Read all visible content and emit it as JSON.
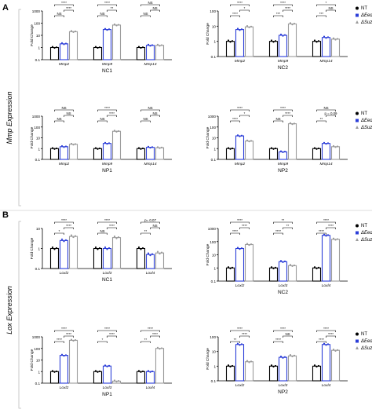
{
  "chart_data": [
    {
      "type": "bar",
      "log": true,
      "section": "A",
      "group_label": "Mmp Expression",
      "title": "NC1",
      "ylabel": "Fold Change",
      "ylim": [
        0.1,
        1000
      ],
      "yticks": [
        0.1,
        1,
        10,
        100,
        1000
      ],
      "yticklabels": [
        "0.1",
        "1",
        "10",
        "100",
        "1000"
      ],
      "categories": [
        "Mmp2",
        "Mmp9",
        "Mmp14"
      ],
      "series": [
        {
          "name": "NT",
          "values": [
            1,
            1,
            1
          ]
        },
        {
          "name": "ΔEed",
          "values": [
            2,
            30,
            1.5
          ]
        },
        {
          "name": "ΔSuz12",
          "values": [
            20,
            70,
            1.5
          ]
        }
      ],
      "comparisons": [
        {
          "category": 0,
          "pair": [
            0,
            1
          ],
          "label": "NS"
        },
        {
          "category": 0,
          "pair": [
            1,
            2
          ],
          "label": "****"
        },
        {
          "category": 0,
          "pair": [
            0,
            2
          ],
          "label": "****"
        },
        {
          "category": 1,
          "pair": [
            0,
            1
          ],
          "label": "NS"
        },
        {
          "category": 1,
          "pair": [
            1,
            2
          ],
          "label": "**"
        },
        {
          "category": 1,
          "pair": [
            0,
            2
          ],
          "label": "****"
        },
        {
          "category": 2,
          "pair": [
            0,
            1
          ],
          "label": "NS"
        },
        {
          "category": 2,
          "pair": [
            1,
            2
          ],
          "label": "NS"
        },
        {
          "category": 2,
          "pair": [
            0,
            2
          ],
          "label": "NS"
        }
      ]
    },
    {
      "type": "bar",
      "log": true,
      "section": "A",
      "title": "NC2",
      "ylabel": "Fold Change",
      "ylim": [
        0.1,
        100
      ],
      "yticks": [
        0.1,
        1,
        10,
        100
      ],
      "yticklabels": [
        "0.1",
        "1",
        "10",
        "100"
      ],
      "categories": [
        "Mmp2",
        "Mmp9",
        "Mmp14"
      ],
      "series": [
        {
          "name": "NT",
          "values": [
            1,
            1,
            1
          ]
        },
        {
          "name": "ΔEed",
          "values": [
            6,
            2.5,
            1.8
          ]
        },
        {
          "name": "ΔSuz12",
          "values": [
            9,
            14,
            1.4
          ]
        }
      ],
      "comparisons": [
        {
          "category": 0,
          "pair": [
            0,
            1
          ],
          "label": "****"
        },
        {
          "category": 0,
          "pair": [
            1,
            2
          ],
          "label": "*"
        },
        {
          "category": 0,
          "pair": [
            0,
            2
          ],
          "label": "****"
        },
        {
          "category": 1,
          "pair": [
            0,
            1
          ],
          "label": "***"
        },
        {
          "category": 1,
          "pair": [
            1,
            2
          ],
          "label": "****"
        },
        {
          "category": 1,
          "pair": [
            0,
            2
          ],
          "label": "****"
        },
        {
          "category": 2,
          "pair": [
            0,
            1
          ],
          "label": "***"
        },
        {
          "category": 2,
          "pair": [
            1,
            2
          ],
          "label": "NS"
        },
        {
          "category": 2,
          "pair": [
            0,
            2
          ],
          "label": "*"
        }
      ]
    },
    {
      "type": "bar",
      "log": true,
      "section": "A",
      "title": "NP1",
      "ylabel": "Fold Change",
      "ylim": [
        0.1,
        1000
      ],
      "yticks": [
        0.1,
        1,
        10,
        100,
        1000
      ],
      "yticklabels": [
        "0.1",
        "1",
        "10",
        "100",
        "1000"
      ],
      "categories": [
        "Mmp2",
        "Mmp9",
        "Mmp14"
      ],
      "series": [
        {
          "name": "NT",
          "values": [
            1,
            1,
            1
          ]
        },
        {
          "name": "ΔEed",
          "values": [
            1.5,
            3,
            1.3
          ]
        },
        {
          "name": "ΔSuz12",
          "values": [
            2.5,
            40,
            1.2
          ]
        }
      ],
      "comparisons": [
        {
          "category": 0,
          "pair": [
            0,
            1
          ],
          "label": "NS"
        },
        {
          "category": 0,
          "pair": [
            1,
            2
          ],
          "label": "NS"
        },
        {
          "category": 0,
          "pair": [
            0,
            2
          ],
          "label": "NS"
        },
        {
          "category": 1,
          "pair": [
            0,
            1
          ],
          "label": "NS"
        },
        {
          "category": 1,
          "pair": [
            1,
            2
          ],
          "label": "****"
        },
        {
          "category": 1,
          "pair": [
            0,
            2
          ],
          "label": "****"
        },
        {
          "category": 2,
          "pair": [
            0,
            1
          ],
          "label": "NS"
        },
        {
          "category": 2,
          "pair": [
            1,
            2
          ],
          "label": "NS"
        },
        {
          "category": 2,
          "pair": [
            0,
            2
          ],
          "label": "NS"
        }
      ]
    },
    {
      "type": "bar",
      "log": true,
      "section": "A",
      "title": "NP2",
      "ylabel": "Fold Change",
      "ylim": [
        0.1,
        1000
      ],
      "yticks": [
        0.1,
        1,
        10,
        100,
        1000
      ],
      "yticklabels": [
        "0.1",
        "1",
        "10",
        "100",
        "1000"
      ],
      "categories": [
        "Mmp2",
        "Mmp9",
        "Mmp14"
      ],
      "series": [
        {
          "name": "NT",
          "values": [
            1,
            1,
            1
          ]
        },
        {
          "name": "ΔEed",
          "values": [
            15,
            0.5,
            3
          ]
        },
        {
          "name": "ΔSuz12",
          "values": [
            5,
            200,
            1.5
          ]
        }
      ],
      "comparisons": [
        {
          "category": 0,
          "pair": [
            0,
            1
          ],
          "label": "****"
        },
        {
          "category": 0,
          "pair": [
            1,
            2
          ],
          "label": "*"
        },
        {
          "category": 0,
          "pair": [
            0,
            2
          ],
          "label": "****"
        },
        {
          "category": 1,
          "pair": [
            0,
            1
          ],
          "label": "NS"
        },
        {
          "category": 1,
          "pair": [
            1,
            2
          ],
          "label": "****"
        },
        {
          "category": 1,
          "pair": [
            0,
            2
          ],
          "label": "****"
        },
        {
          "category": 2,
          "pair": [
            0,
            1
          ],
          "label": "**"
        },
        {
          "category": 2,
          "pair": [
            1,
            2
          ],
          "label": "p = 0.09"
        },
        {
          "category": 2,
          "pair": [
            0,
            2
          ],
          "label": "NS"
        }
      ]
    },
    {
      "type": "bar",
      "log": true,
      "section": "B",
      "group_label": "Lox Expression",
      "title": "NC1",
      "ylabel": "Fold Change",
      "ylim": [
        0.1,
        10
      ],
      "yticks": [
        0.1,
        1,
        10
      ],
      "yticklabels": [
        "0.1",
        "1",
        "10"
      ],
      "categories": [
        "Loxl2",
        "Loxl3",
        "Loxl4"
      ],
      "series": [
        {
          "name": "NT",
          "values": [
            1,
            1,
            1
          ]
        },
        {
          "name": "ΔEed",
          "values": [
            2.5,
            1,
            0.5
          ]
        },
        {
          "name": "ΔSuz12",
          "values": [
            4,
            3.5,
            0.6
          ]
        }
      ],
      "comparisons": [
        {
          "category": 0,
          "pair": [
            0,
            1
          ],
          "label": "*"
        },
        {
          "category": 0,
          "pair": [
            1,
            2
          ],
          "label": "****"
        },
        {
          "category": 0,
          "pair": [
            0,
            2
          ],
          "label": "****"
        },
        {
          "category": 1,
          "pair": [
            0,
            1
          ],
          "label": "NS"
        },
        {
          "category": 1,
          "pair": [
            1,
            2
          ],
          "label": "****"
        },
        {
          "category": 1,
          "pair": [
            0,
            2
          ],
          "label": "****"
        },
        {
          "category": 2,
          "pair": [
            0,
            1
          ],
          "label": "**"
        },
        {
          "category": 2,
          "pair": [
            1,
            2
          ],
          "label": "NS"
        },
        {
          "category": 2,
          "pair": [
            0,
            2
          ],
          "label": "p= 0.07"
        }
      ]
    },
    {
      "type": "bar",
      "log": true,
      "section": "B",
      "title": "NC2",
      "ylabel": "Fold Change",
      "ylim": [
        0.1,
        1000
      ],
      "yticks": [
        0.1,
        1,
        10,
        100,
        1000
      ],
      "yticklabels": [
        "0.1",
        "1",
        "10",
        "100",
        "1000"
      ],
      "categories": [
        "Loxl2",
        "Loxl3",
        "Loxl4"
      ],
      "series": [
        {
          "name": "NT",
          "values": [
            1,
            1,
            1
          ]
        },
        {
          "name": "ΔEed",
          "values": [
            30,
            3,
            300
          ]
        },
        {
          "name": "ΔSuz12",
          "values": [
            60,
            1.5,
            150
          ]
        }
      ],
      "comparisons": [
        {
          "category": 0,
          "pair": [
            0,
            1
          ],
          "label": "****"
        },
        {
          "category": 0,
          "pair": [
            1,
            2
          ],
          "label": "****"
        },
        {
          "category": 0,
          "pair": [
            0,
            2
          ],
          "label": "****"
        },
        {
          "category": 1,
          "pair": [
            0,
            1
          ],
          "label": "****"
        },
        {
          "category": 1,
          "pair": [
            1,
            2
          ],
          "label": "**"
        },
        {
          "category": 1,
          "pair": [
            0,
            2
          ],
          "label": "**"
        },
        {
          "category": 2,
          "pair": [
            0,
            1
          ],
          "label": "****"
        },
        {
          "category": 2,
          "pair": [
            1,
            2
          ],
          "label": "****"
        },
        {
          "category": 2,
          "pair": [
            0,
            2
          ],
          "label": "****"
        }
      ]
    },
    {
      "type": "bar",
      "log": true,
      "section": "B",
      "title": "NP1",
      "ylabel": "Fold Change",
      "ylim": [
        0.1,
        1000
      ],
      "yticks": [
        0.1,
        1,
        10,
        100,
        1000
      ],
      "yticklabels": [
        "0.1",
        "1",
        "10",
        "100",
        "1000"
      ],
      "categories": [
        "Loxl2",
        "Loxl3",
        "Loxl4"
      ],
      "series": [
        {
          "name": "NT",
          "values": [
            1,
            1,
            1
          ]
        },
        {
          "name": "ΔEed",
          "values": [
            25,
            3,
            1
          ]
        },
        {
          "name": "ΔSuz12",
          "values": [
            500,
            0.15,
            100
          ]
        }
      ],
      "comparisons": [
        {
          "category": 0,
          "pair": [
            0,
            1
          ],
          "label": "****"
        },
        {
          "category": 0,
          "pair": [
            1,
            2
          ],
          "label": "****"
        },
        {
          "category": 0,
          "pair": [
            0,
            2
          ],
          "label": "****"
        },
        {
          "category": 1,
          "pair": [
            0,
            1
          ],
          "label": "*"
        },
        {
          "category": 1,
          "pair": [
            1,
            2
          ],
          "label": "****"
        },
        {
          "category": 1,
          "pair": [
            0,
            2
          ],
          "label": "****"
        },
        {
          "category": 2,
          "pair": [
            0,
            1
          ],
          "label": "**"
        },
        {
          "category": 2,
          "pair": [
            1,
            2
          ],
          "label": "****"
        },
        {
          "category": 2,
          "pair": [
            0,
            2
          ],
          "label": "****"
        }
      ]
    },
    {
      "type": "bar",
      "log": true,
      "section": "B",
      "title": "NP2",
      "ylabel": "Fold Change",
      "ylim": [
        0.1,
        100
      ],
      "yticks": [
        0.1,
        1,
        10,
        100
      ],
      "yticklabels": [
        "0.1",
        "1",
        "10",
        "100"
      ],
      "categories": [
        "Loxl2",
        "Loxl3",
        "Loxl4"
      ],
      "series": [
        {
          "name": "NT",
          "values": [
            1,
            1,
            1
          ]
        },
        {
          "name": "ΔEed",
          "values": [
            30,
            4,
            30
          ]
        },
        {
          "name": "ΔSuz12",
          "values": [
            2,
            5,
            12
          ]
        }
      ],
      "comparisons": [
        {
          "category": 0,
          "pair": [
            0,
            1
          ],
          "label": "**"
        },
        {
          "category": 0,
          "pair": [
            1,
            2
          ],
          "label": "****"
        },
        {
          "category": 0,
          "pair": [
            0,
            2
          ],
          "label": "****"
        },
        {
          "category": 1,
          "pair": [
            0,
            1
          ],
          "label": "****"
        },
        {
          "category": 1,
          "pair": [
            1,
            2
          ],
          "label": "NS"
        },
        {
          "category": 1,
          "pair": [
            0,
            2
          ],
          "label": "****"
        },
        {
          "category": 2,
          "pair": [
            0,
            1
          ],
          "label": "****"
        },
        {
          "category": 2,
          "pair": [
            1,
            2
          ],
          "label": "****"
        },
        {
          "category": 2,
          "pair": [
            0,
            2
          ],
          "label": "****"
        }
      ]
    }
  ],
  "figure": {
    "panel_a_letter": "A",
    "panel_b_letter": "B",
    "panel_a_group_label": "Mmp Expression",
    "panel_b_group_label": "Lox Expression"
  },
  "legend": {
    "entries": [
      "NT",
      "ΔEed",
      "ΔSuz12"
    ],
    "placement": "right of each right-column panel"
  },
  "colors": {
    "NT": "#000000",
    "ΔEed": "#2b3dd8",
    "ΔSuz12": "#9a9a9a",
    "axis": "#000000",
    "separator": "#d0d0d0"
  }
}
